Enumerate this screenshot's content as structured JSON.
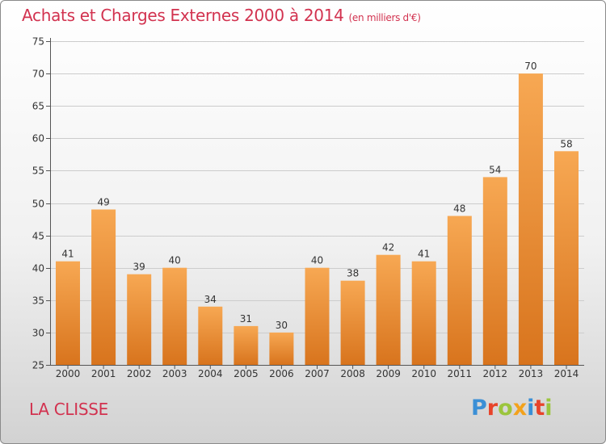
{
  "header": {
    "title": "Achats et Charges Externes 2000 à 2014",
    "unit": "(en milliers d'€)"
  },
  "footer": {
    "place": "LA CLISSE",
    "logo": "Proxiti"
  },
  "colors": {
    "title": "#d2324f",
    "bar_top": "#f7a853",
    "bar_bottom": "#d8741d",
    "grid": "#cccccc",
    "logo_letters": [
      "#3a8fd6",
      "#e8432a",
      "#9bc53d",
      "#f3a21c",
      "#3a8fd6",
      "#e8432a",
      "#9bc53d"
    ]
  },
  "chart_data": {
    "type": "bar",
    "title": "Achats et Charges Externes 2000 à 2014",
    "subtitle": "(en milliers d'€)",
    "categories": [
      "2000",
      "2001",
      "2002",
      "2003",
      "2004",
      "2005",
      "2006",
      "2007",
      "2008",
      "2009",
      "2010",
      "2011",
      "2012",
      "2013",
      "2014"
    ],
    "values": [
      41,
      49,
      39,
      40,
      34,
      31,
      30,
      40,
      38,
      42,
      41,
      48,
      54,
      70,
      58
    ],
    "ylim": [
      25,
      75
    ],
    "yticks": [
      25,
      30,
      35,
      40,
      45,
      50,
      55,
      60,
      65,
      70,
      75
    ],
    "grid": true,
    "xlabel": "",
    "ylabel": ""
  }
}
